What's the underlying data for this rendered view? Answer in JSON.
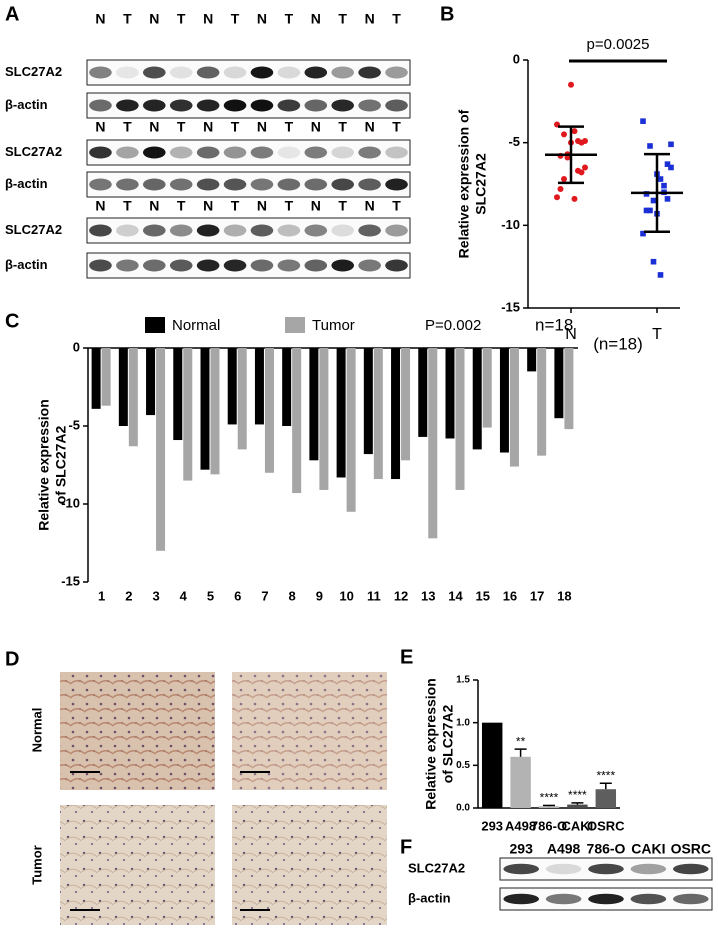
{
  "panel_letters": [
    "A",
    "B",
    "C",
    "D",
    "E",
    "F"
  ],
  "blot_a": [
    {
      "lanes": [
        "N",
        "T",
        "N",
        "T",
        "N",
        "T",
        "N",
        "T",
        "N",
        "T",
        "N",
        "T"
      ],
      "rows": [
        "SLC27A2",
        "β-actin"
      ]
    },
    {
      "lanes": [
        "N",
        "T",
        "N",
        "T",
        "N",
        "T",
        "N",
        "T",
        "N",
        "T",
        "N",
        "T"
      ],
      "rows": [
        "SLC27A2",
        "β-actin"
      ]
    },
    {
      "lanes": [
        "N",
        "T",
        "N",
        "T",
        "N",
        "T",
        "N",
        "T",
        "N",
        "T",
        "N",
        "T"
      ],
      "rows": [
        "SLC27A2",
        "β-actin"
      ]
    }
  ],
  "ihc": {
    "rows": [
      "Normal",
      "Tumor"
    ]
  },
  "blot_f": {
    "lanes": [
      "293",
      "A498",
      "786-O",
      "CAKI",
      "OSRC"
    ],
    "rows": [
      "SLC27A2",
      "β-actin"
    ]
  },
  "chart_data": [
    {
      "type": "scatter",
      "ylabel": [
        "Relative expression of",
        "SLC27A2"
      ],
      "categories": [
        "N",
        "T"
      ],
      "annotations": [
        "p=0.0025",
        "(n=18)"
      ],
      "ylim": [
        -15,
        0
      ],
      "yticks": [
        0,
        -5,
        -10,
        -15
      ],
      "series": [
        {
          "color": "#e0191e",
          "values": [
            -3.9,
            -5,
            -4.3,
            -5.9,
            -7.8,
            -4.9,
            -4.9,
            -5,
            -7.2,
            -8.3,
            -6.8,
            -8.4,
            -5.7,
            -5.8,
            -6.5,
            -6.7,
            -1.5,
            -4.5
          ],
          "mean": -5.73,
          "sd": 1.7
        },
        {
          "color": "#1a2fd6",
          "values": [
            -3.7,
            -6.3,
            -13,
            -8.5,
            -8.1,
            -6.5,
            -8,
            -9.3,
            -9.1,
            -10.5,
            -8.4,
            -7.2,
            -12.2,
            -9.1,
            -5.1,
            -7.6,
            -6.9,
            -5.2
          ],
          "mean": -8.04,
          "sd": 2.35
        }
      ]
    },
    {
      "type": "bar",
      "ylabel": [
        "Relative expression",
        "of SLC27A2"
      ],
      "categories": [
        "1",
        "2",
        "3",
        "4",
        "5",
        "6",
        "7",
        "8",
        "9",
        "10",
        "11",
        "12",
        "13",
        "14",
        "15",
        "16",
        "17",
        "18"
      ],
      "annotations": [
        "P=0.002",
        "n=18"
      ],
      "ylim": [
        -15,
        0
      ],
      "yticks": [
        0,
        -5,
        -10,
        -15
      ],
      "series": [
        {
          "name": "Normal",
          "color": "#000000",
          "values": [
            -3.9,
            -5,
            -4.3,
            -5.9,
            -7.8,
            -4.9,
            -4.9,
            -5,
            -7.2,
            -8.3,
            -6.8,
            -8.4,
            -5.7,
            -5.8,
            -6.5,
            -6.7,
            -1.5,
            -4.5
          ]
        },
        {
          "name": "Tumor",
          "color": "#a6a6a6",
          "values": [
            -3.7,
            -6.3,
            -13,
            -8.5,
            -8.1,
            -6.5,
            -8,
            -9.3,
            -9.1,
            -10.5,
            -8.4,
            -7.2,
            -12.2,
            -9.1,
            -5.1,
            -7.6,
            -6.9,
            -5.2
          ]
        }
      ]
    },
    {
      "type": "bar",
      "ylabel": [
        "Relative expression",
        "of SLC27A2"
      ],
      "categories": [
        "293",
        "A498",
        "786-O",
        "CAKI",
        "OSRC"
      ],
      "values": [
        1,
        0.6,
        0.02,
        0.04,
        0.22
      ],
      "errors": [
        0,
        0.09,
        0.01,
        0.02,
        0.07
      ],
      "colors": [
        "#000000",
        "#b3b3b3",
        "#b3b3b3",
        "#4d4d4d",
        "#5e5e5e"
      ],
      "significance": [
        null,
        "**",
        "****",
        "****",
        "****"
      ],
      "ylim": [
        0,
        1.5
      ],
      "yticks": [
        {
          "value": 0,
          "label": "0.0"
        },
        0.5,
        {
          "value": 1,
          "label": "1.0"
        },
        1.5
      ]
    }
  ]
}
